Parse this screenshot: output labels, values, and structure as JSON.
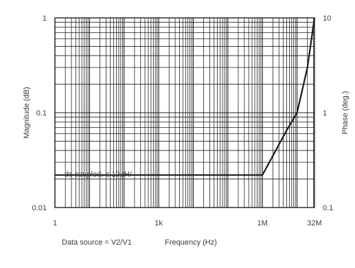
{
  "chart_data": {
    "type": "line",
    "title": "",
    "xlabel": "Frequency (Hz)",
    "ylabel": "Magnitude (dB)",
    "y2label": "Phase (deg.)",
    "x_scale": "log",
    "y_scale": "log",
    "xlim": [
      1,
      32000000
    ],
    "ylim": [
      0.01,
      1
    ],
    "y2lim": [
      0.1,
      10
    ],
    "grid": true,
    "x_ticks": [
      {
        "value": 1,
        "label": "1"
      },
      {
        "value": 1000,
        "label": "1k"
      },
      {
        "value": 1000000,
        "label": "1M"
      },
      {
        "value": 32000000,
        "label": "32M"
      }
    ],
    "y_ticks": [
      {
        "value": 0.01,
        "label": "0.01"
      },
      {
        "value": 0.1,
        "label": "0.1"
      },
      {
        "value": 1,
        "label": "1"
      }
    ],
    "y2_ticks": [
      {
        "value": 0.1,
        "label": "0.1"
      },
      {
        "value": 1,
        "label": "1"
      },
      {
        "value": 10,
        "label": "10"
      }
    ],
    "series": [
      {
        "x": [
          1,
          1000000,
          5000000,
          10000000,
          20000000,
          32000000
        ],
        "y": [
          0.022,
          0.022,
          0.065,
          0.1,
          0.3,
          1.0
        ]
      }
    ],
    "annotation": "dc coupled, ≤ 10μH/ ",
    "footer_note": "Data source = V2/V1"
  },
  "colors": {
    "grid": "#1f1f1f",
    "line": "#1a1a1a",
    "text": "#3a3a3a"
  }
}
